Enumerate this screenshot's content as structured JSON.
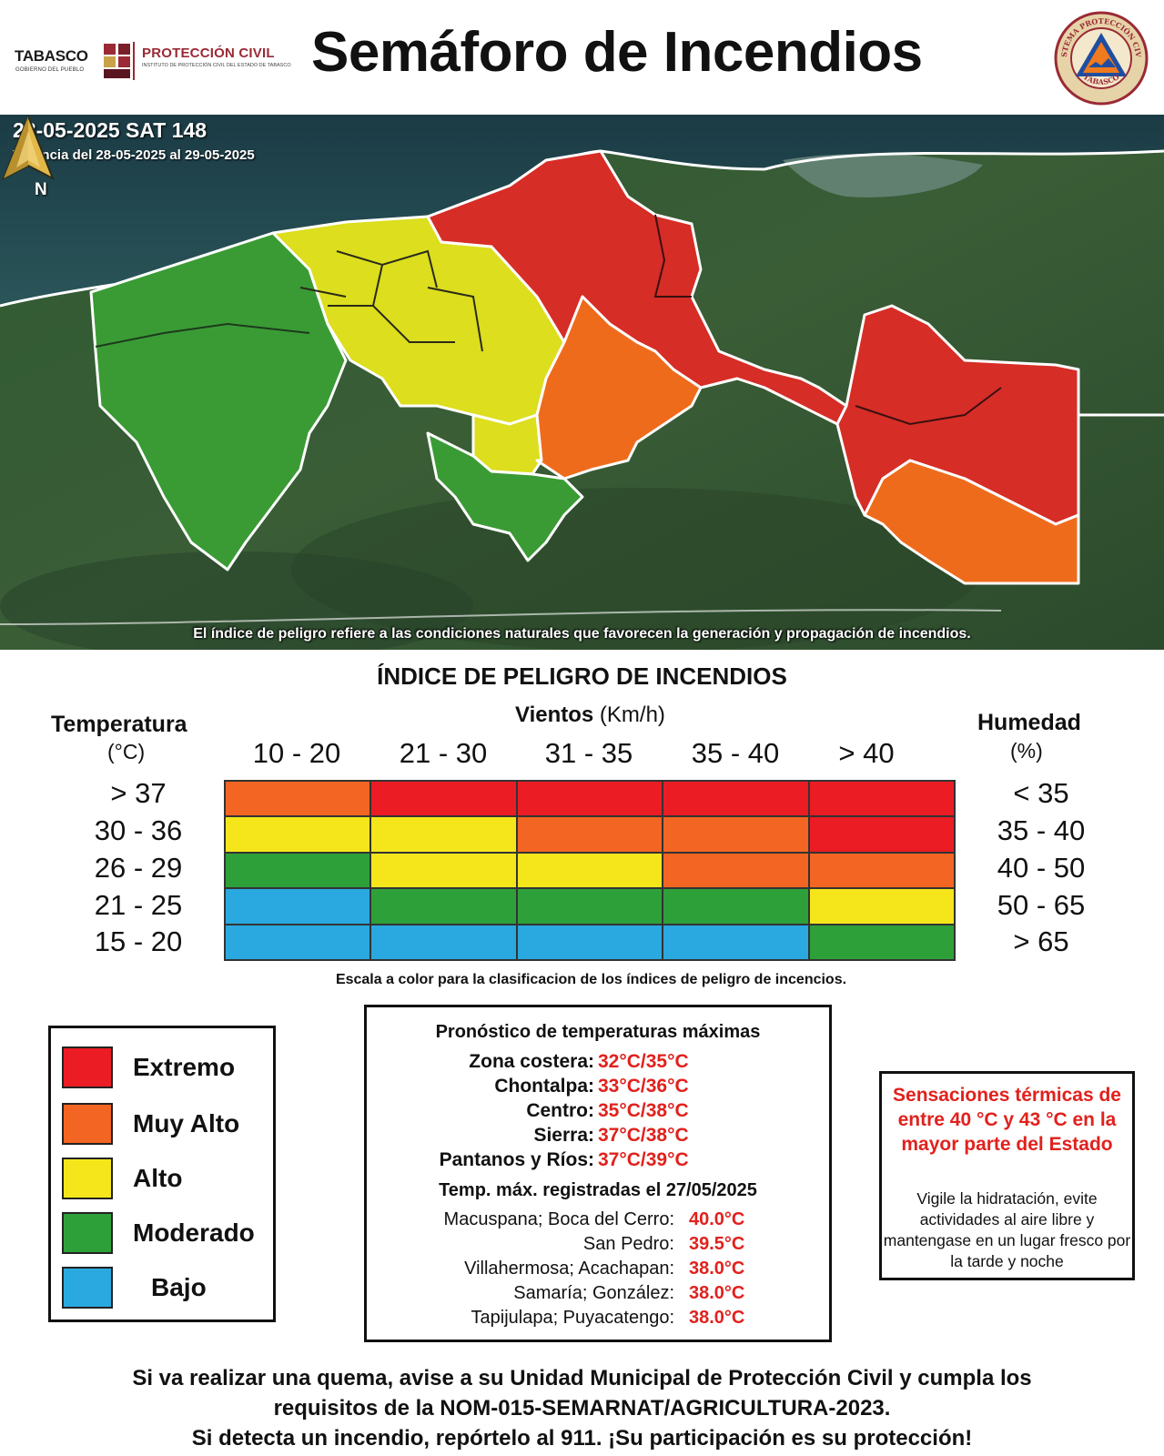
{
  "header": {
    "title": "Semáforo de Incendios",
    "logo_tabasco": "TABASCO",
    "logo_tabasco_sub": "GOBIERNO DEL PUEBLO",
    "logo_pc": "PROTECCIÓN CIVIL",
    "logo_pc_sub": "INSTITUTO DE PROTECCIÓN CIVIL DEL ESTADO DE TABASCO",
    "seal_text_top": "SISTEMA PROTECCIÓN CIVIL",
    "seal_text_bottom": "TABASCO"
  },
  "map": {
    "date_line": "28-05-2025 SAT 148",
    "validity": "Vigencia del 28-05-2025 al 29-05-2025",
    "north": "N",
    "note": "El índice de peligro refiere a las condiciones naturales que favorecen la generación y propagación de incendios.",
    "colors": {
      "extremo": "#d62d26",
      "muy_alto": "#ef6b1c",
      "alto": "#dcde1e",
      "moderado": "#3a9b35"
    }
  },
  "index": {
    "title": "ÍNDICE DE PELIGRO DE INCENDIOS",
    "temperature_label": "Temperatura",
    "temperature_unit": "(°C)",
    "wind_label": "Vientos",
    "wind_unit": "(Km/h)",
    "humidity_label": "Humedad",
    "humidity_unit": "(%)",
    "wind_ranges": [
      "10 - 20",
      "21 - 30",
      "31 - 35",
      "35 - 40",
      "> 40"
    ],
    "temperature_ranges": [
      "> 37",
      "30 - 36",
      "26 - 29",
      "21 - 25",
      "15 - 20"
    ],
    "humidity_ranges": [
      "< 35",
      "35 - 40",
      "40 - 50",
      "50 - 65",
      "> 65"
    ],
    "matrix": [
      [
        "muy_alto",
        "extremo",
        "extremo",
        "extremo",
        "extremo"
      ],
      [
        "alto",
        "alto",
        "muy_alto",
        "muy_alto",
        "extremo"
      ],
      [
        "moderado",
        "alto",
        "alto",
        "muy_alto",
        "muy_alto"
      ],
      [
        "bajo",
        "moderado",
        "moderado",
        "moderado",
        "alto"
      ],
      [
        "bajo",
        "bajo",
        "bajo",
        "bajo",
        "moderado"
      ]
    ],
    "level_colors": {
      "extremo": "#ec1c24",
      "muy_alto": "#f26522",
      "alto": "#f5e61b",
      "moderado": "#2ea03a",
      "bajo": "#2aa9e0"
    },
    "caption": "Escala a color para la clasificacion de los índices de peligro de incencios."
  },
  "legend": [
    {
      "label": "Extremo",
      "color": "#ec1c24"
    },
    {
      "label": "Muy Alto",
      "color": "#f26522"
    },
    {
      "label": "Alto",
      "color": "#f5e61b"
    },
    {
      "label": "Moderado",
      "color": "#2ea03a"
    },
    {
      "label": "Bajo",
      "color": "#2aa9e0"
    }
  ],
  "forecast": {
    "title": "Pronóstico de temperaturas máximas",
    "zones": [
      {
        "zone": "Zona costera:",
        "value": "32°C/35°C"
      },
      {
        "zone": "Chontalpa:",
        "value": "33°C/36°C"
      },
      {
        "zone": "Centro:",
        "value": "35°C/38°C"
      },
      {
        "zone": "Sierra:",
        "value": "37°C/38°C"
      },
      {
        "zone": "Pantanos y Ríos:",
        "value": "37°C/39°C"
      }
    ],
    "recorded_title": "Temp. máx. registradas el 27/05/2025",
    "recorded": [
      {
        "place": "Macuspana; Boca del Cerro:",
        "value": "40.0°C"
      },
      {
        "place": "San Pedro:",
        "value": "39.5°C"
      },
      {
        "place": "Villahermosa; Acachapan:",
        "value": "38.0°C"
      },
      {
        "place": "Samaría; González:",
        "value": "38.0°C"
      },
      {
        "place": "Tapijulapa; Puyacatengo:",
        "value": "38.0°C"
      }
    ]
  },
  "thermal": {
    "title": "Sensaciones térmicas de entre 40 °C y 43 °C en la mayor parte del Estado",
    "body": "Vigile la hidratación, evite actividades al aire libre y mantengase en un lugar fresco por la tarde y noche"
  },
  "footer": {
    "line1": "Si va realizar una quema, avise a su Unidad Municipal de Protección Civil y cumpla los",
    "line2": "requisitos de la NOM-015-SEMARNAT/AGRICULTURA-2023.",
    "line3": "Si detecta un incendio, repórtelo al 911. ¡Su participación es su protección!"
  }
}
